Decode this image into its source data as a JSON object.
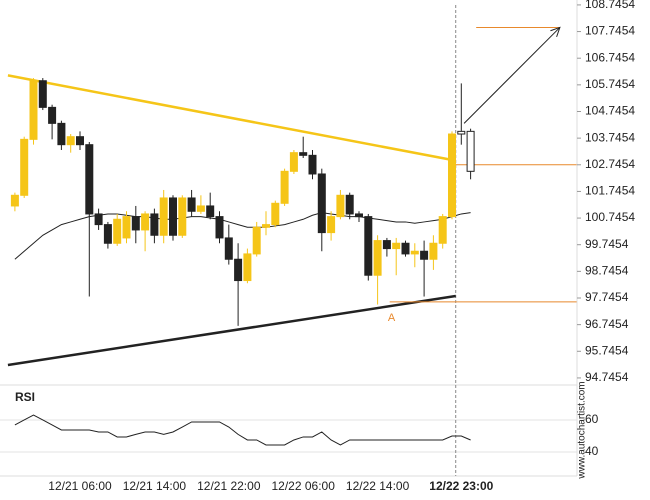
{
  "chart_data": {
    "type": "candlestick",
    "categories": [
      null,
      null,
      null,
      null,
      null,
      null,
      null,
      "12/21 06:00",
      null,
      null,
      null,
      null,
      null,
      null,
      null,
      "12/21 14:00",
      null,
      null,
      null,
      null,
      null,
      null,
      null,
      "12/21 22:00",
      null,
      null,
      null,
      null,
      null,
      null,
      null,
      "12/22 06:00",
      null,
      null,
      null,
      null,
      null,
      null,
      null,
      "12/22 14:00",
      null,
      null,
      null,
      null,
      null,
      null,
      null,
      null,
      "12/22 23:00",
      null
    ],
    "open": [
      101.2,
      101.6,
      103.7,
      105.9,
      104.9,
      104.3,
      103.5,
      103.8,
      103.5,
      100.9,
      100.5,
      99.8,
      100.0,
      100.8,
      100.3,
      100.9,
      100.1,
      101.5,
      100.1,
      101.5,
      101.0,
      101.2,
      100.8,
      100.0,
      99.2,
      98.4,
      99.4,
      100.4,
      100.5,
      101.3,
      102.5,
      103.2,
      103.1,
      102.4,
      100.2,
      100.8,
      101.6,
      100.9,
      100.8,
      98.6,
      99.9,
      99.6,
      99.8,
      99.4,
      99.5,
      99.2,
      99.8,
      100.8,
      103.9,
      104.0
    ],
    "high": [
      101.7,
      103.8,
      106.0,
      106.0,
      105.0,
      104.4,
      103.9,
      104.0,
      103.6,
      101.1,
      100.6,
      100.9,
      101.0,
      101.2,
      101.0,
      101.1,
      101.8,
      101.6,
      101.6,
      101.8,
      101.6,
      101.7,
      101.0,
      100.5,
      99.8,
      99.6,
      100.6,
      101.0,
      101.4,
      102.6,
      103.3,
      103.8,
      103.3,
      102.6,
      101.0,
      101.8,
      101.7,
      101.0,
      100.9,
      100.1,
      100.0,
      100.0,
      99.9,
      99.8,
      99.9,
      100.1,
      100.9,
      104.0,
      105.8,
      104.1
    ],
    "low": [
      101.0,
      101.5,
      103.5,
      104.8,
      103.7,
      103.3,
      103.2,
      103.3,
      97.8,
      100.3,
      99.6,
      99.7,
      99.8,
      99.8,
      99.5,
      99.8,
      99.8,
      99.9,
      100.0,
      100.8,
      100.9,
      100.7,
      99.8,
      99.0,
      96.7,
      98.3,
      99.3,
      100.1,
      100.4,
      101.2,
      102.4,
      103.0,
      102.2,
      99.5,
      99.9,
      100.7,
      100.7,
      100.6,
      98.4,
      97.5,
      99.3,
      98.6,
      99.3,
      98.9,
      97.8,
      98.8,
      99.6,
      100.7,
      103.5,
      102.2
    ],
    "close": [
      101.6,
      103.7,
      105.9,
      104.9,
      104.3,
      103.5,
      103.8,
      103.5,
      100.9,
      100.5,
      99.8,
      100.7,
      100.8,
      100.3,
      100.9,
      100.1,
      101.5,
      100.1,
      101.5,
      101.0,
      101.2,
      100.8,
      100.0,
      99.2,
      98.4,
      99.4,
      100.4,
      100.5,
      101.3,
      102.5,
      103.2,
      103.1,
      102.4,
      100.2,
      100.8,
      101.6,
      100.9,
      100.8,
      98.6,
      99.9,
      99.6,
      99.8,
      99.4,
      99.5,
      99.2,
      99.8,
      100.8,
      103.9,
      104.0,
      102.5
    ],
    "up_color": "#f5c518",
    "down_color": "#222222",
    "ylim": [
      94.48,
      108.93
    ],
    "yticks": [
      94.7454,
      95.7454,
      96.7454,
      97.7454,
      98.7454,
      99.7454,
      100.7454,
      101.7454,
      102.7454,
      103.7454,
      104.7454,
      105.7454,
      106.7454,
      107.7454,
      108.7454
    ],
    "moving_average": {
      "color": "#222222",
      "values": [
        99.2,
        99.5,
        99.8,
        100.1,
        100.3,
        100.5,
        100.6,
        100.7,
        100.8,
        100.85,
        100.9,
        100.9,
        100.85,
        100.8,
        100.8,
        100.75,
        100.7,
        100.7,
        100.75,
        100.8,
        100.8,
        100.75,
        100.7,
        100.6,
        100.5,
        100.4,
        100.4,
        100.4,
        100.45,
        100.5,
        100.6,
        100.7,
        100.85,
        100.95,
        100.9,
        100.85,
        100.8,
        100.8,
        100.75,
        100.7,
        100.65,
        100.6,
        100.6,
        100.55,
        100.6,
        100.65,
        100.7,
        100.8,
        100.9,
        100.95
      ]
    },
    "trendlines": [
      {
        "color": "#f5c518",
        "x": [
          -0.75,
          47.4
        ],
        "y": [
          106.1,
          102.9
        ]
      },
      {
        "color": "#222222",
        "x": [
          -0.75,
          47.4
        ],
        "y": [
          95.23,
          97.82
        ]
      }
    ],
    "levels": [
      {
        "color": "#e8892c",
        "value": 102.7454,
        "x": [
          47.4,
          60.4
        ]
      },
      {
        "color": "#e8892c",
        "value": 97.6,
        "x": [
          40.3,
          60.4
        ]
      },
      {
        "color": "#e8892c",
        "value": 107.9,
        "x": [
          49.6,
          58.6
        ]
      }
    ],
    "arrow": {
      "color": "#222222",
      "x": [
        48.3,
        58.6
      ],
      "y": [
        104.3,
        107.9
      ]
    },
    "marker": {
      "label": "A",
      "x": 40.5,
      "y": 97.3,
      "color": "#e8892c"
    },
    "now_index": 47.4,
    "source": "www.autochartist.com",
    "rsi": {
      "title": "RSI",
      "color": "#222222",
      "values": [
        56.9,
        60,
        63.1,
        60,
        56.9,
        53.75,
        53.75,
        53.75,
        53.75,
        52.5,
        52.5,
        49.4,
        49.4,
        51,
        52.5,
        52.5,
        51,
        52.5,
        55.6,
        58.75,
        58.75,
        58.75,
        58.75,
        55.6,
        51,
        47.5,
        47.5,
        44.4,
        44.4,
        44.4,
        47.5,
        49.4,
        49.4,
        52.5,
        47.5,
        44.4,
        47.5,
        47.5,
        47.5,
        47.5,
        47.5,
        47.5,
        47.5,
        47.5,
        47.5,
        47.5,
        47.5,
        50,
        50,
        47.5
      ],
      "ylim": [
        28.75,
        75.6
      ],
      "yticks": [
        40,
        60
      ],
      "grid": true
    }
  }
}
